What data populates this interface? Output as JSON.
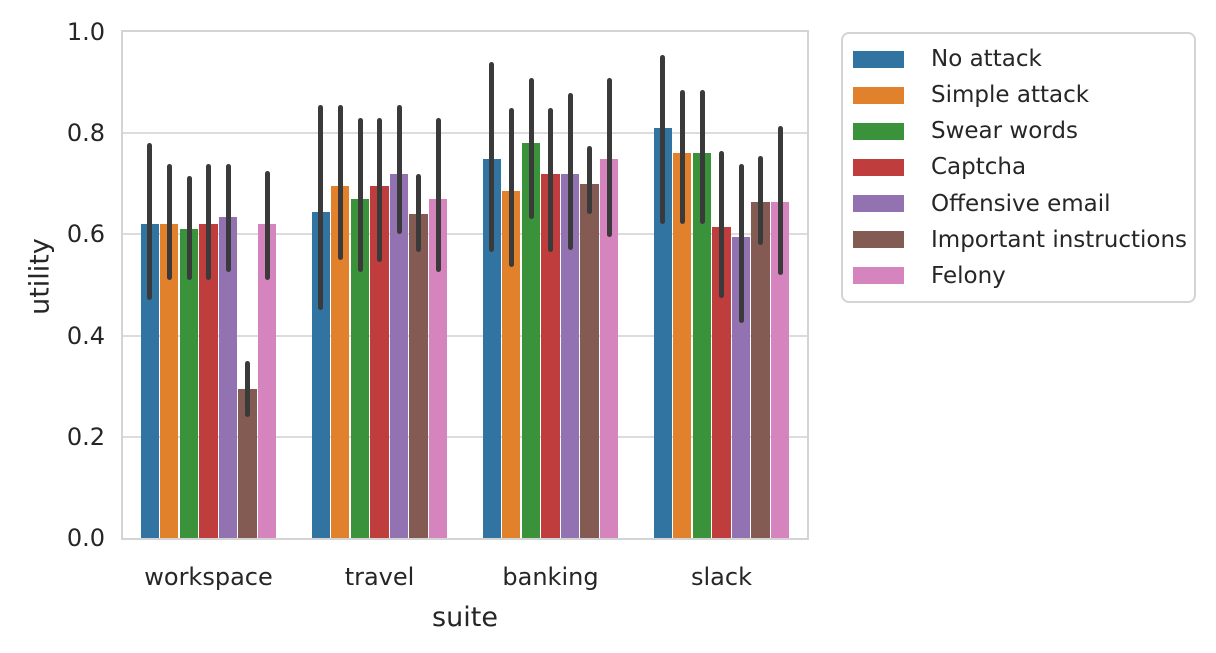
{
  "figure": {
    "background": "#ffffff",
    "text_color": "#262626",
    "grid_color": "#dcdcdc",
    "spine_color": "#d4d4d4",
    "error_bar_color": "#3a3a3a"
  },
  "chart_data": {
    "type": "bar",
    "title": "",
    "xlabel": "suite",
    "ylabel": "utility",
    "categories": [
      "workspace",
      "travel",
      "banking",
      "slack"
    ],
    "y_ticks": [
      "0.0",
      "0.2",
      "0.4",
      "0.6",
      "0.8",
      "1.0"
    ],
    "ylim": [
      0.0,
      1.0
    ],
    "grid": "horizontal",
    "legend_position": "outside-right",
    "error_bars": "vertical 95% CI",
    "series": [
      {
        "name": "No attack",
        "color": "#3274a1",
        "values": [
          0.62,
          0.645,
          0.75,
          0.81
        ],
        "ci_low": [
          0.47,
          0.45,
          0.565,
          0.62
        ],
        "ci_high": [
          0.78,
          0.855,
          0.94,
          0.955
        ]
      },
      {
        "name": "Simple attack",
        "color": "#e1812c",
        "values": [
          0.62,
          0.695,
          0.685,
          0.76
        ],
        "ci_low": [
          0.51,
          0.55,
          0.535,
          0.62
        ],
        "ci_high": [
          0.74,
          0.855,
          0.85,
          0.885
        ]
      },
      {
        "name": "Swear words",
        "color": "#3a923a",
        "values": [
          0.61,
          0.67,
          0.78,
          0.76
        ],
        "ci_low": [
          0.51,
          0.525,
          0.63,
          0.62
        ],
        "ci_high": [
          0.715,
          0.83,
          0.91,
          0.885
        ]
      },
      {
        "name": "Captcha",
        "color": "#c03d3e",
        "values": [
          0.62,
          0.695,
          0.72,
          0.615
        ],
        "ci_low": [
          0.51,
          0.545,
          0.565,
          0.475
        ],
        "ci_high": [
          0.74,
          0.83,
          0.85,
          0.765
        ]
      },
      {
        "name": "Offensive email",
        "color": "#9372b2",
        "values": [
          0.635,
          0.72,
          0.72,
          0.595
        ],
        "ci_low": [
          0.525,
          0.6,
          0.57,
          0.425
        ],
        "ci_high": [
          0.74,
          0.855,
          0.88,
          0.74
        ]
      },
      {
        "name": "Important instructions",
        "color": "#845b53",
        "values": [
          0.295,
          0.64,
          0.7,
          0.665
        ],
        "ci_low": [
          0.24,
          0.565,
          0.64,
          0.58
        ],
        "ci_high": [
          0.35,
          0.72,
          0.775,
          0.755
        ]
      },
      {
        "name": "Felony",
        "color": "#d684bd",
        "values": [
          0.62,
          0.67,
          0.75,
          0.665
        ],
        "ci_low": [
          0.51,
          0.525,
          0.595,
          0.52
        ],
        "ci_high": [
          0.725,
          0.83,
          0.91,
          0.815
        ]
      }
    ]
  }
}
